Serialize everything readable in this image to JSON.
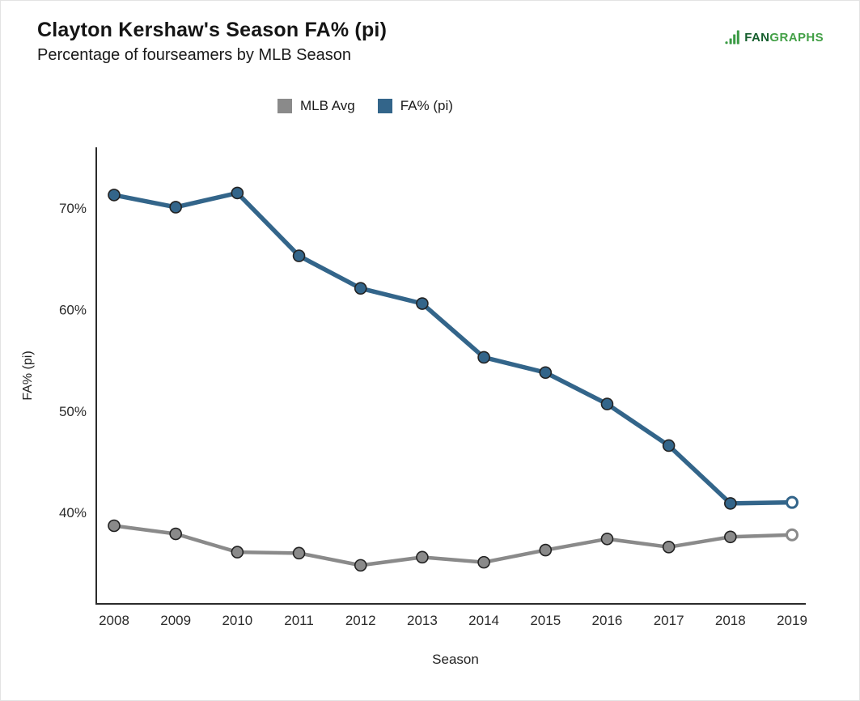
{
  "header": {
    "title": "Clayton Kershaw's Season FA% (pi)",
    "subtitle": "Percentage of fourseamers by MLB Season"
  },
  "logo": {
    "fan": "FAN",
    "graphs": "GRAPHS",
    "fan_color": "#155e2d",
    "graphs_color": "#43a047",
    "icon_color": "#3a9a44"
  },
  "legend": [
    {
      "label": "MLB Avg",
      "color": "#8a8a8a"
    },
    {
      "label": "FA% (pi)",
      "color": "#33658a"
    }
  ],
  "chart_data": {
    "type": "line",
    "title": "Clayton Kershaw's Season FA% (pi)",
    "subtitle": "Percentage of fourseamers by MLB Season",
    "xlabel": "Season",
    "ylabel": "FA% (pi)",
    "x": [
      2008,
      2009,
      2010,
      2011,
      2012,
      2013,
      2014,
      2015,
      2016,
      2017,
      2018,
      2019
    ],
    "series": [
      {
        "name": "MLB Avg",
        "color": "#8a8a8a",
        "line_width": 4.5,
        "values": [
          38.7,
          37.9,
          36.1,
          36.0,
          34.8,
          35.6,
          35.1,
          36.3,
          37.4,
          36.6,
          37.6,
          37.8
        ],
        "last_point_open": true
      },
      {
        "name": "FA% (pi)",
        "color": "#33658a",
        "line_width": 5.5,
        "values": [
          71.3,
          70.1,
          71.5,
          65.3,
          62.1,
          60.6,
          55.3,
          53.8,
          50.7,
          46.6,
          40.9,
          41.0
        ],
        "last_point_open": true
      }
    ],
    "ylim": [
      31,
      76
    ],
    "yticks": [
      40,
      50,
      60,
      70
    ],
    "ytick_suffix": "%",
    "grid": false,
    "legend_position": "top-center",
    "marker": "circle",
    "marker_outline": "#222222",
    "axis_color": "#2b2b2b"
  }
}
